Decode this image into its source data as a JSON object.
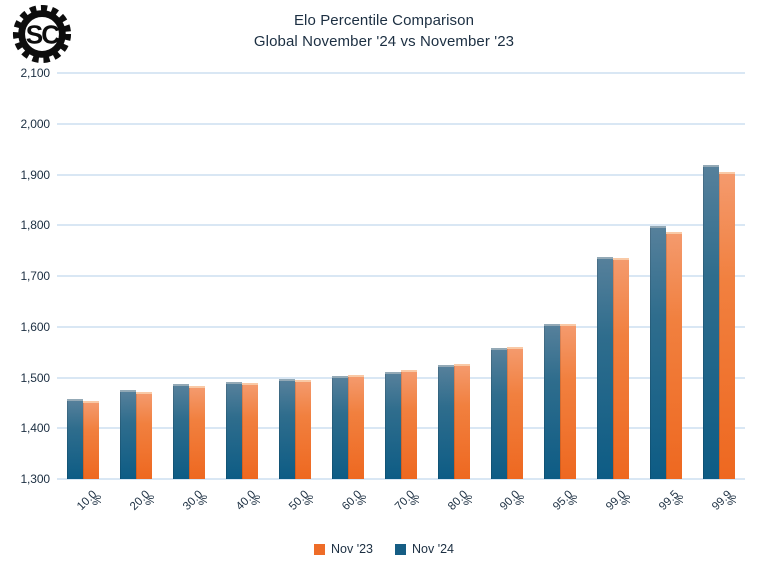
{
  "logo": {
    "text": "SC"
  },
  "chart_data": {
    "type": "bar",
    "title": "Elo Percentile Comparison",
    "subtitle": "Global November '24 vs November '23",
    "categories": [
      "10.0%",
      "20.0%",
      "30.0%",
      "40.0%",
      "50.0%",
      "60.0%",
      "70.0%",
      "80.0%",
      "90.0%",
      "95.0%",
      "99.0%",
      "99.5%",
      "99.9%"
    ],
    "series": [
      {
        "name": "Nov '23",
        "color": "#ee6c28",
        "values": [
          1450,
          1467,
          1480,
          1485,
          1491,
          1501,
          1510,
          1523,
          1557,
          1601,
          1732,
          1783,
          1901
        ]
      },
      {
        "name": "Nov '24",
        "color": "#155d84",
        "values": [
          1453,
          1471,
          1483,
          1488,
          1493,
          1499,
          1507,
          1520,
          1554,
          1601,
          1734,
          1794,
          1914
        ]
      }
    ],
    "bar_order": [
      "Nov '24",
      "Nov '23"
    ],
    "xlabel": "",
    "ylabel": "",
    "ylim": [
      1300,
      2100
    ],
    "ytick_step": 100,
    "ytick_labels": [
      "1,300",
      "1,400",
      "1,500",
      "1,600",
      "1,700",
      "1,800",
      "1,900",
      "2,000",
      "2,100"
    ],
    "grid": true,
    "gridline_color": "#d9e7f4",
    "legend_position": "bottom"
  }
}
